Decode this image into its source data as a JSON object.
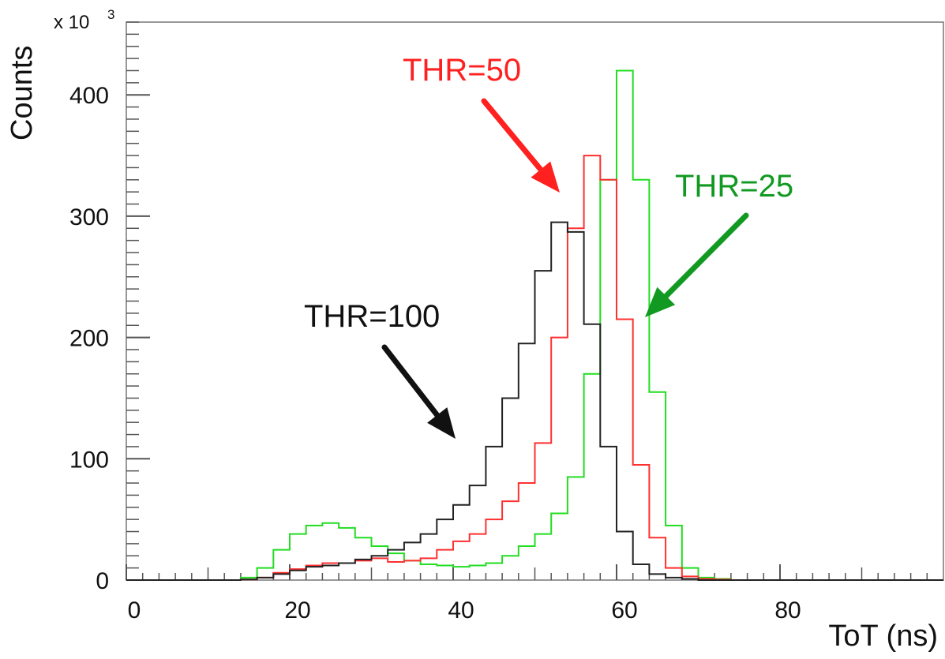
{
  "chart_data": {
    "type": "line",
    "style": "step histogram",
    "xlabel": "ToT (ns)",
    "ylabel": "Counts",
    "y_multiplier": "x 10",
    "y_multiplier_exp": "3",
    "xlim": [
      0,
      100
    ],
    "ylim": [
      0,
      460
    ],
    "x_ticks": [
      0,
      20,
      40,
      60,
      80
    ],
    "y_ticks": [
      0,
      100,
      200,
      300,
      400
    ],
    "bin_edges": [
      0,
      2,
      4,
      6,
      8,
      10,
      12,
      14,
      16,
      18,
      20,
      22,
      24,
      26,
      28,
      30,
      32,
      34,
      36,
      38,
      40,
      42,
      44,
      46,
      48,
      50,
      52,
      54,
      56,
      58,
      60,
      62,
      64,
      66,
      68,
      70,
      72,
      74,
      76,
      78,
      80,
      82,
      84,
      86,
      88,
      90,
      92,
      94,
      96,
      98,
      100
    ],
    "series": [
      {
        "color": "#222222",
        "values": [
          0,
          0,
          0,
          0,
          0,
          0,
          0,
          0.5,
          2,
          5,
          8,
          11,
          12,
          14,
          17,
          20,
          25,
          31,
          38,
          50,
          62,
          78,
          110,
          150,
          195,
          255,
          295,
          287,
          211,
          110,
          40,
          13,
          5,
          2,
          1,
          0,
          0,
          0,
          0,
          0,
          0,
          0,
          0,
          0,
          0,
          0,
          0,
          0,
          0,
          0
        ]
      },
      {
        "color": "#ff3030",
        "values": [
          0,
          0,
          0,
          0,
          0,
          0,
          0,
          0.5,
          2,
          6,
          9,
          12,
          14,
          14,
          16,
          18,
          15,
          16,
          18,
          25,
          32,
          38,
          50,
          65,
          80,
          113,
          200,
          290,
          350,
          330,
          215,
          95,
          35,
          10,
          3,
          1,
          0.5,
          0,
          0,
          0,
          0,
          0,
          0,
          0,
          0,
          0,
          0,
          0,
          0,
          0
        ]
      },
      {
        "color": "#22dd22",
        "values": [
          0,
          0,
          0,
          0,
          0,
          0,
          0,
          2,
          10,
          25,
          38,
          45,
          47,
          43,
          35,
          28,
          22,
          16,
          13,
          12,
          11,
          12,
          14,
          20,
          28,
          38,
          55,
          85,
          170,
          330,
          420,
          330,
          155,
          45,
          10,
          2,
          1,
          0,
          0,
          0,
          0,
          0,
          0,
          0,
          0,
          0,
          0,
          0,
          0,
          0
        ]
      }
    ],
    "annotations": [
      {
        "text": "THR=100",
        "color": "#111111"
      },
      {
        "text": "THR=50",
        "color": "#ff2020"
      },
      {
        "text": "THR=25",
        "color": "#119922"
      }
    ]
  }
}
